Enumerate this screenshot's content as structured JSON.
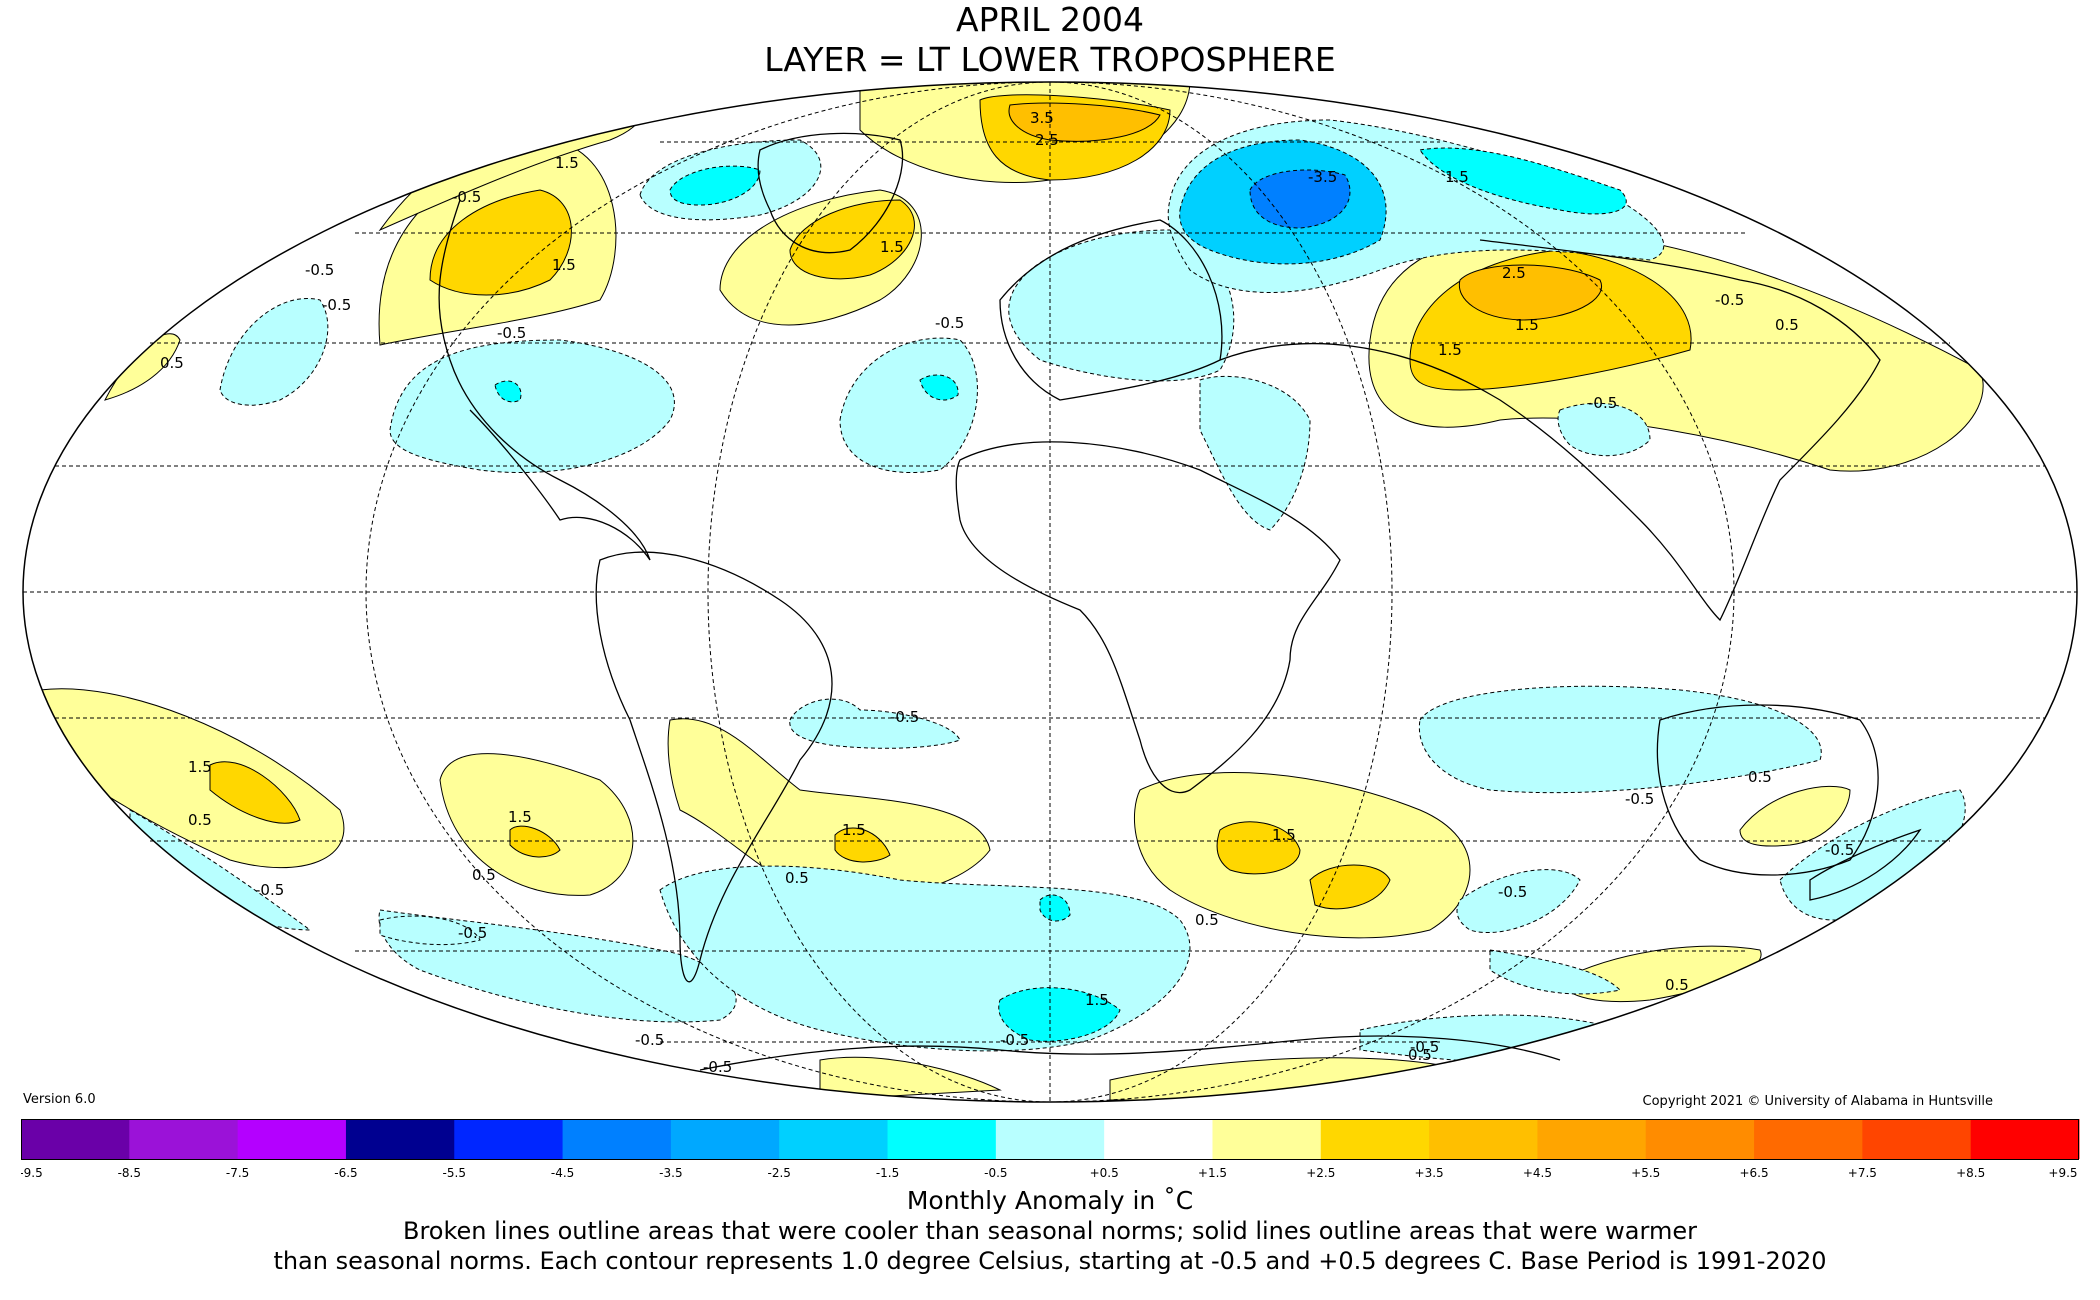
{
  "header": {
    "title": "APRIL 2004",
    "subtitle": "LAYER = LT LOWER TROPOSPHERE"
  },
  "footer": {
    "version": "Version 6.0",
    "copyright": "Copyright 2021 © University of Alabama in Huntsville",
    "colorbar_title": "Monthly Anomaly in ˚C",
    "caption_line1": "Broken lines outline areas that were cooler than seasonal norms; solid lines outline areas that were warmer",
    "caption_line2": "than seasonal norms. Each contour represents 1.0 degree Celsius, starting at -0.5 and +0.5 degrees C. Base Period is 1991-2020"
  },
  "colorbar": {
    "ticks": [
      "-9.5",
      "-8.5",
      "-7.5",
      "-6.5",
      "-5.5",
      "-4.5",
      "-3.5",
      "-2.5",
      "-1.5",
      "-0.5",
      "+0.5",
      "+1.5",
      "+2.5",
      "+3.5",
      "+4.5",
      "+5.5",
      "+6.5",
      "+7.5",
      "+8.5",
      "+9.5"
    ],
    "colors": [
      "#3a0060",
      "#6a00a8",
      "#9b12d8",
      "#b400ff",
      "#000090",
      "#0026ff",
      "#0080ff",
      "#00a8ff",
      "#00d0ff",
      "#00ffff",
      "#b8ffff",
      "#ffffff",
      "#ffff99",
      "#ffd700",
      "#ffbf00",
      "#ffa500",
      "#ff8c00",
      "#ff6a00",
      "#ff4500",
      "#ff0000",
      "#e00000",
      "#b00000"
    ]
  },
  "map": {
    "projection": "Mollweide",
    "colors": {
      "warm1": "#ffff99",
      "warm2": "#ffd700",
      "warm3": "#ffbf00",
      "cool1": "#b8ffff",
      "cool2": "#00ffff",
      "cool3": "#00d0ff",
      "cool4": "#0080ff"
    },
    "contour_labels": [
      "1.5",
      "-0.5",
      "1.5",
      "-0.5",
      "-0.5",
      "0.5",
      "-0.5",
      "1.5",
      "3.5",
      "2.5",
      "-0.5",
      "-3.5",
      "1.5",
      "2.5",
      "1.5",
      "-0.5",
      "0.5",
      "1.5",
      "-0.5",
      "-0.5",
      "1.5",
      "0.5",
      "-0.5",
      "-0.5",
      "1.5",
      "0.5",
      "0.5",
      "1.5",
      "1.5",
      "-0.5",
      "0.5",
      "-0.5",
      "0.5",
      "-0.5",
      "-0.5",
      "-0.5",
      "1.5",
      "-0.5",
      "0.5",
      "0.5",
      "-0.5"
    ]
  }
}
